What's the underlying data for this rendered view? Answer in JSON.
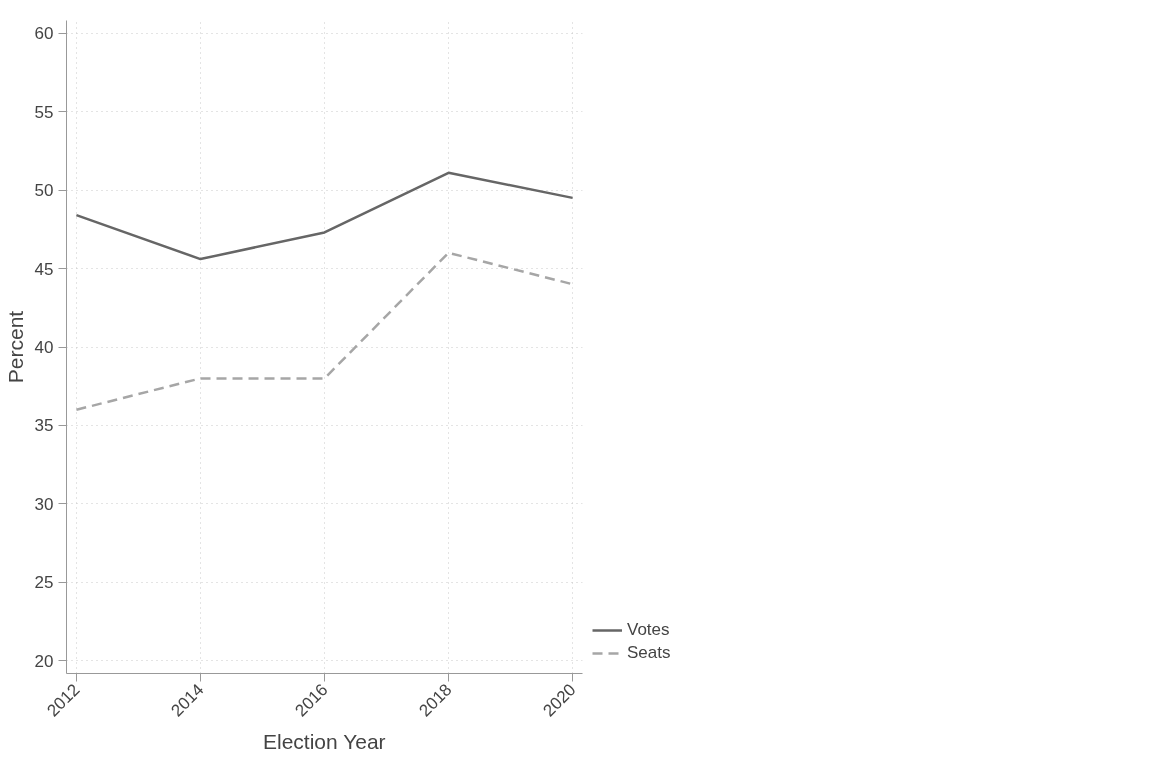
{
  "chart_data": {
    "type": "line",
    "xlabel": "Election Year",
    "ylabel": "Percent",
    "x": [
      2012,
      2014,
      2016,
      2018,
      2020
    ],
    "series": [
      {
        "name": "Votes",
        "color": "#666666",
        "values": [
          48.4,
          45.6,
          47.3,
          51.1,
          49.5
        ],
        "line_style": "solid"
      },
      {
        "name": "Seats",
        "color": "#a6a6a6",
        "values": [
          36,
          38,
          38,
          46,
          44
        ],
        "line_style": "dashed"
      }
    ],
    "xlim": [
      2012,
      2020
    ],
    "xticks": [
      2012,
      2014,
      2016,
      2018,
      2020
    ],
    "ylim": [
      20,
      60
    ],
    "yticks": [
      20,
      25,
      30,
      35,
      40,
      45,
      50,
      55,
      60
    ],
    "grid": true,
    "legend": "right",
    "marker": "none"
  }
}
